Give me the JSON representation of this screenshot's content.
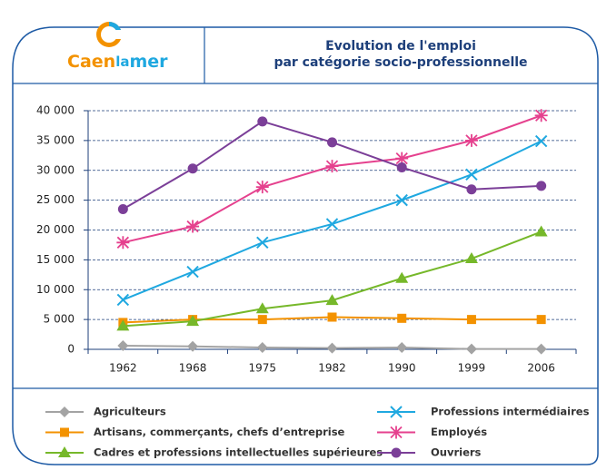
{
  "logo": {
    "part1": "Caen",
    "part2": "la",
    "part3": "mer"
  },
  "chart_data": {
    "type": "line",
    "title": [
      "Evolution de l'emploi",
      "par catégorie socio-professionnelle"
    ],
    "categories": [
      "1962",
      "1968",
      "1975",
      "1982",
      "1990",
      "1999",
      "2006"
    ],
    "ylim": [
      0,
      40000
    ],
    "yticks": [
      0,
      {
        "value": 5000,
        "label": "5 000"
      },
      {
        "value": 10000,
        "label": "10 000"
      },
      {
        "value": 15000,
        "label": "15 000"
      },
      {
        "value": 20000,
        "label": "20 000"
      },
      {
        "value": 25000,
        "label": "25 000"
      },
      {
        "value": 30000,
        "label": "30 000"
      },
      {
        "value": 35000,
        "label": "35 000"
      },
      {
        "value": 40000,
        "label": "40 000"
      }
    ],
    "grid": true,
    "series": [
      {
        "name": "Agriculteurs",
        "color": "#a3a3a3",
        "marker": "diamond",
        "values": [
          600,
          500,
          300,
          200,
          300,
          50,
          50
        ]
      },
      {
        "name": "Artisans, commerçants, chefs d’entreprise",
        "color": "#f39200",
        "marker": "square",
        "values": [
          4500,
          5000,
          5000,
          5400,
          5200,
          5000,
          5000
        ]
      },
      {
        "name": "Cadres et professions intellectuelles supérieures",
        "color": "#76b82a",
        "marker": "triangle",
        "values": [
          3900,
          4700,
          6800,
          8200,
          11900,
          15200,
          19700
        ]
      },
      {
        "name": "Professions intermédiaires",
        "color": "#1fa8e0",
        "marker": "cross",
        "values": [
          8300,
          13000,
          17900,
          21000,
          25000,
          29300,
          34900
        ]
      },
      {
        "name": "Employés",
        "color": "#e5418e",
        "marker": "asterisk",
        "values": [
          17900,
          20600,
          27200,
          30700,
          32000,
          35000,
          39200
        ]
      },
      {
        "name": "Ouvriers",
        "color": "#7b3f98",
        "marker": "circle",
        "values": [
          23500,
          30300,
          38200,
          34700,
          30500,
          26800,
          27400
        ]
      }
    ]
  }
}
